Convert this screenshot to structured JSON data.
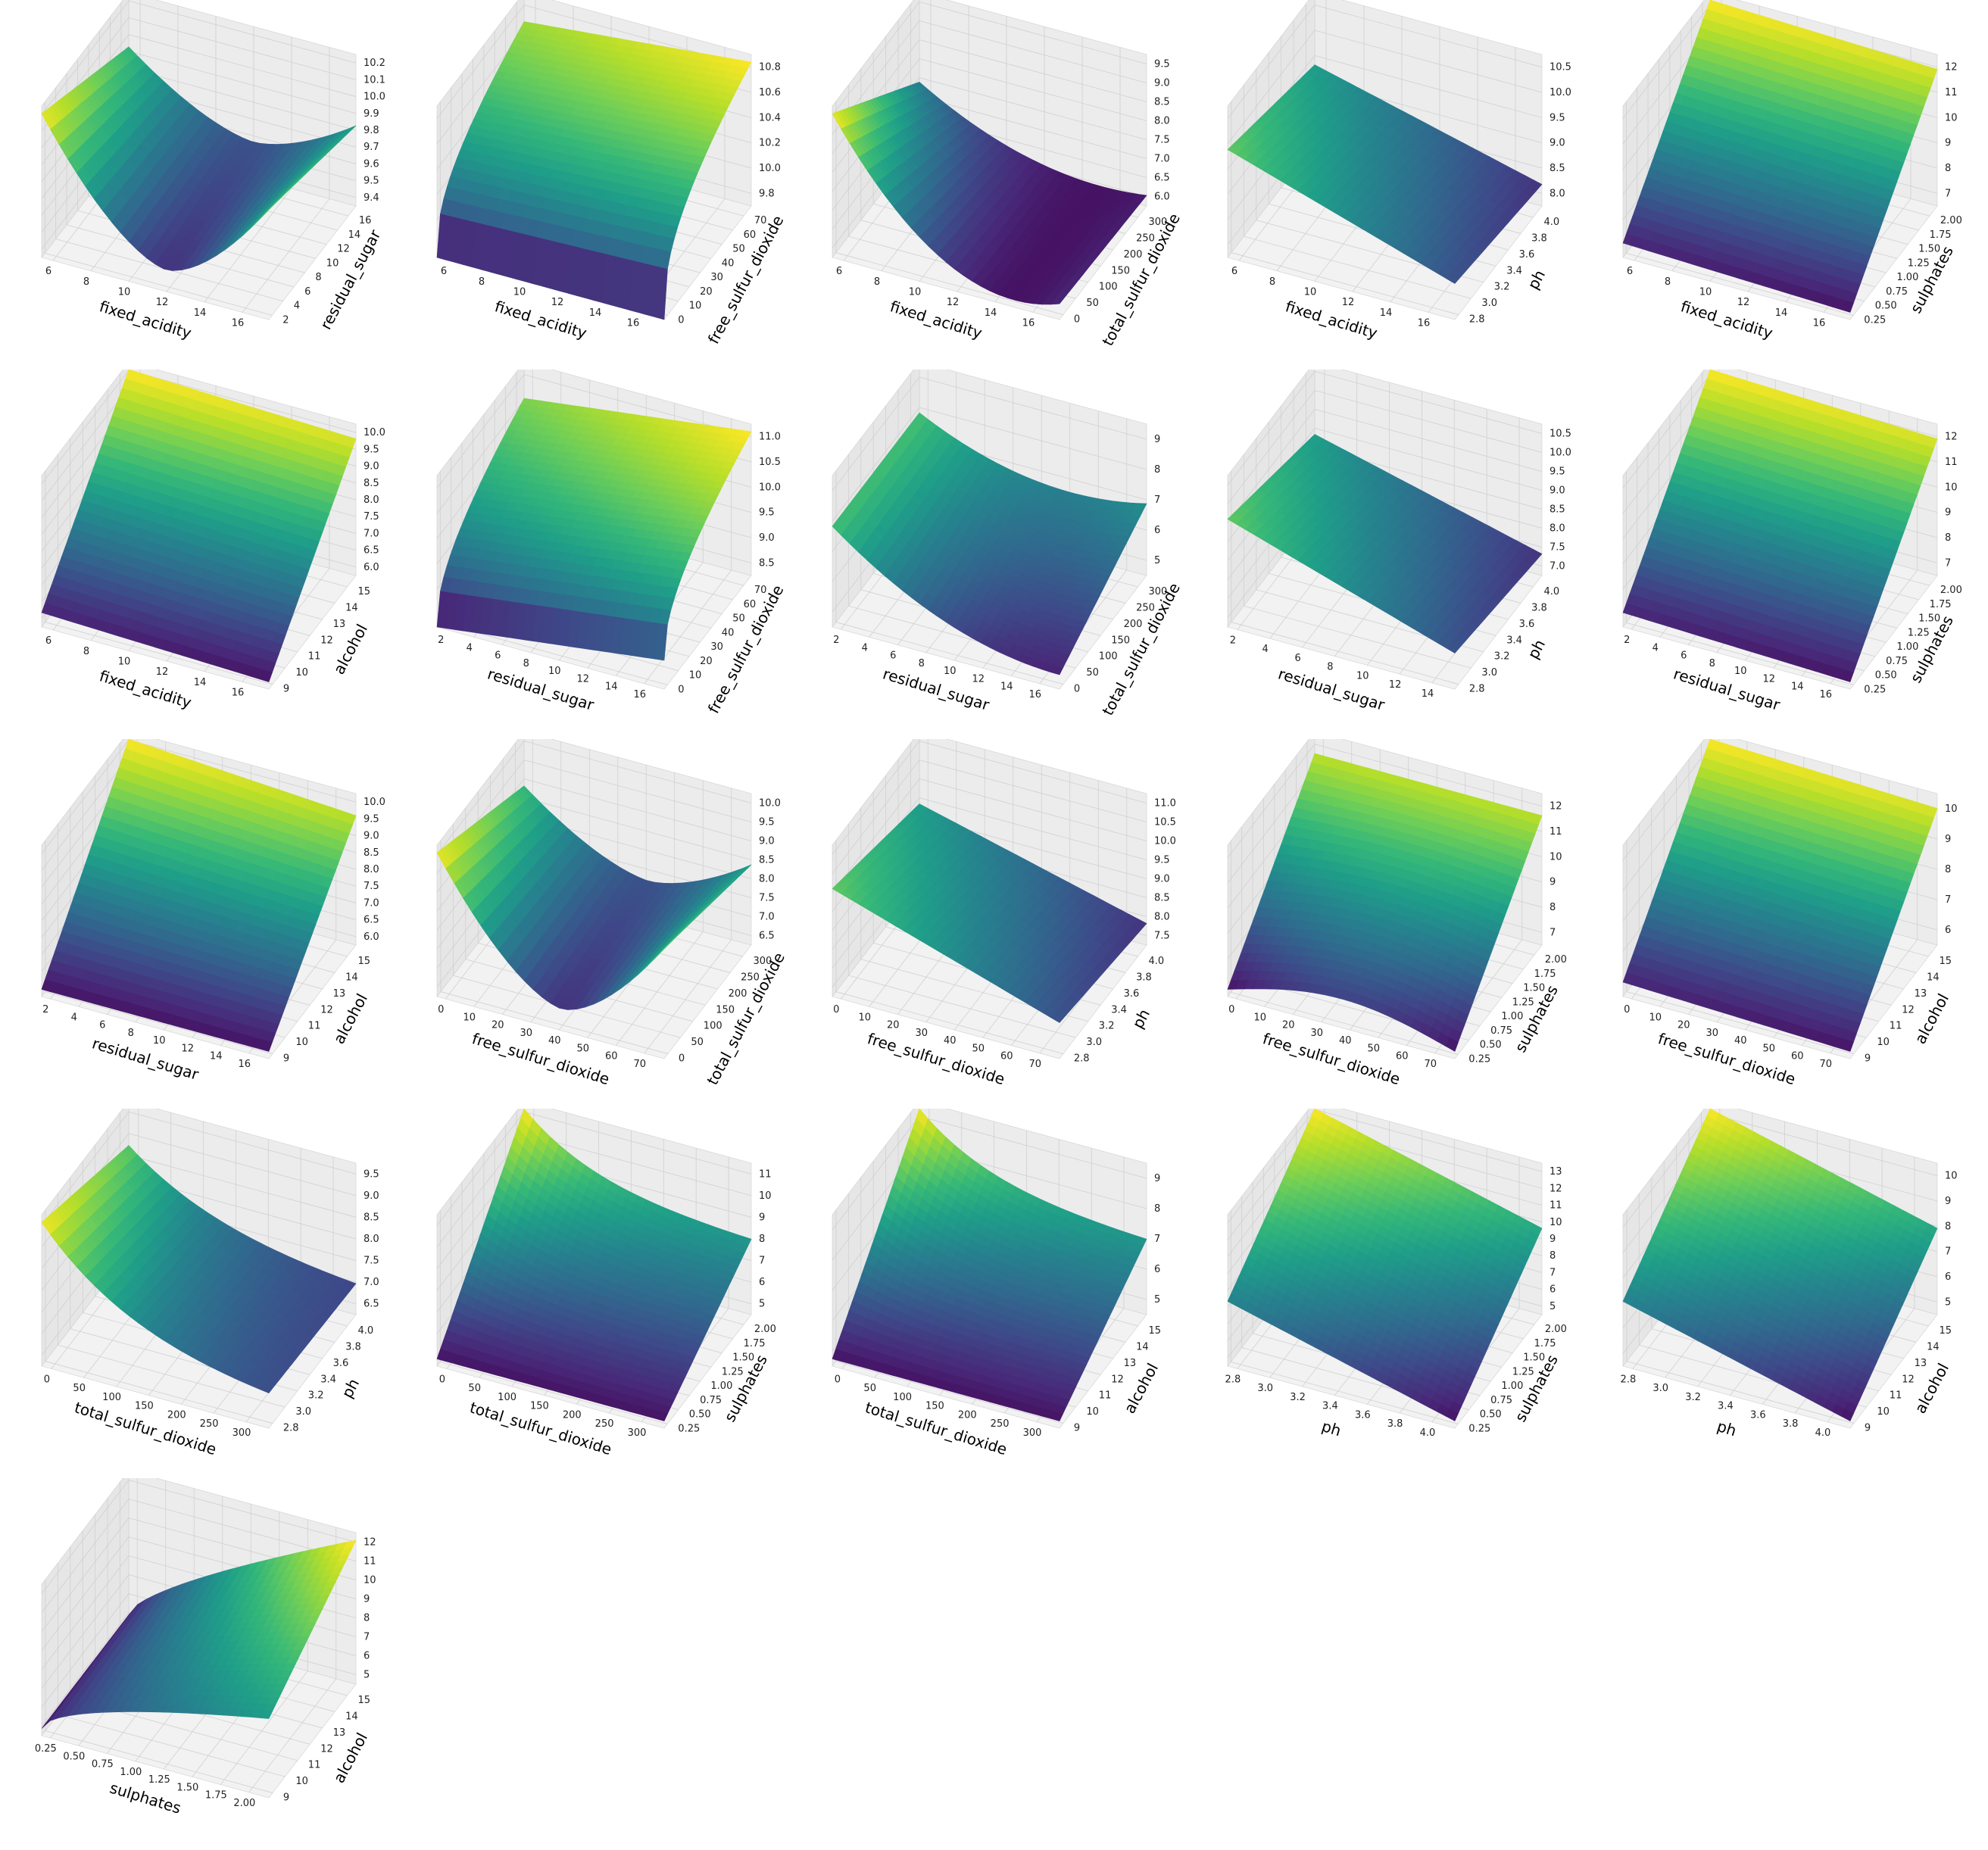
{
  "figure": {
    "colormap": "viridis",
    "colormap_stops": [
      "#440154",
      "#482878",
      "#3e4989",
      "#31688e",
      "#26828e",
      "#1f9e89",
      "#35b779",
      "#6ece58",
      "#b5de2b",
      "#fde725"
    ],
    "pane_color": "#f2f2f2",
    "grid_color": "#d0d0d0"
  },
  "chart_data": [
    {
      "type": "surface",
      "xlabel": "fixed_acidity",
      "ylabel": "residual_sugar",
      "zlabel": ".",
      "xticks": [
        "6",
        "8",
        "10",
        "12",
        "14",
        "16"
      ],
      "yticks": [
        "2",
        "4",
        "6",
        "8",
        "10",
        "12",
        "14",
        "16"
      ],
      "zticks": [
        "9.4",
        "9.5",
        "9.6",
        "9.7",
        "9.8",
        "9.9",
        "10.0",
        "10.1",
        "10.2"
      ],
      "xlim": [
        4.6,
        15.9
      ],
      "ylim": [
        0.9,
        15.5
      ],
      "zlim": [
        9.4,
        10.2
      ],
      "surface": "valley_x"
    },
    {
      "type": "surface",
      "xlabel": "fixed_acidity",
      "ylabel": "free_sulfur_dioxide",
      "zlabel": ".",
      "xticks": [
        "6",
        "8",
        "10",
        "12",
        "14",
        "16"
      ],
      "yticks": [
        "0",
        "10",
        "20",
        "30",
        "40",
        "50",
        "60",
        "70"
      ],
      "zticks": [
        "9.8",
        "10.0",
        "10.2",
        "10.4",
        "10.6",
        "10.8"
      ],
      "xlim": [
        4.6,
        15.9
      ],
      "ylim": [
        1,
        72
      ],
      "zlim": [
        9.7,
        10.85
      ],
      "surface": "sqrt_y"
    },
    {
      "type": "surface",
      "xlabel": "fixed_acidity",
      "ylabel": "total_sulfur_dioxide",
      "zlabel": ".",
      "xticks": [
        "6",
        "8",
        "10",
        "12",
        "14",
        "16"
      ],
      "yticks": [
        "0",
        "50",
        "100",
        "150",
        "200",
        "250",
        "300"
      ],
      "zticks": [
        "6.0",
        "6.5",
        "7.0",
        "7.5",
        "8.0",
        "8.5",
        "9.0",
        "9.5"
      ],
      "xlim": [
        4.6,
        15.9
      ],
      "ylim": [
        6,
        289
      ],
      "zlim": [
        6.0,
        9.6
      ],
      "surface": "valley_x_steep"
    },
    {
      "type": "surface",
      "xlabel": "fixed_acidity",
      "ylabel": "ph",
      "zlabel": ".",
      "xticks": [
        "6",
        "8",
        "10",
        "12",
        "14",
        "16"
      ],
      "yticks": [
        "2.8",
        "3.0",
        "3.2",
        "3.4",
        "3.6",
        "3.8",
        "4.0"
      ],
      "zticks": [
        "8.0",
        "8.5",
        "9.0",
        "9.5",
        "10.0",
        "10.5"
      ],
      "xlim": [
        4.6,
        15.9
      ],
      "ylim": [
        2.74,
        4.01
      ],
      "zlim": [
        8.0,
        10.6
      ],
      "surface": "flat_tilt"
    },
    {
      "type": "surface",
      "xlabel": "fixed_acidity",
      "ylabel": "sulphates",
      "zlabel": ".",
      "xticks": [
        "6",
        "8",
        "10",
        "12",
        "14",
        "16"
      ],
      "yticks": [
        "0.25",
        "0.50",
        "0.75",
        "1.00",
        "1.25",
        "1.50",
        "1.75",
        "2.00"
      ],
      "zticks": [
        "7",
        "8",
        "9",
        "10",
        "11",
        "12"
      ],
      "xlim": [
        4.6,
        15.9
      ],
      "ylim": [
        0.33,
        2.0
      ],
      "zlim": [
        6.6,
        12.6
      ],
      "surface": "linear_y"
    },
    {
      "type": "surface",
      "xlabel": "fixed_acidity",
      "ylabel": "alcohol",
      "zlabel": ".",
      "xticks": [
        "6",
        "8",
        "10",
        "12",
        "14",
        "16"
      ],
      "yticks": [
        "9",
        "10",
        "11",
        "12",
        "13",
        "14",
        "15"
      ],
      "zticks": [
        "6.0",
        "6.5",
        "7.0",
        "7.5",
        "8.0",
        "8.5",
        "9.0",
        "9.5",
        "10.0"
      ],
      "xlim": [
        4.6,
        15.9
      ],
      "ylim": [
        8.4,
        14.9
      ],
      "zlim": [
        5.9,
        10.1
      ],
      "surface": "linear_y"
    },
    {
      "type": "surface",
      "xlabel": "residual_sugar",
      "ylabel": "free_sulfur_dioxide",
      "zlabel": ".",
      "xticks": [
        "2",
        "4",
        "6",
        "8",
        "10",
        "12",
        "14",
        "16"
      ],
      "yticks": [
        "0",
        "10",
        "20",
        "30",
        "40",
        "50",
        "60",
        "70"
      ],
      "zticks": [
        "8.5",
        "9.0",
        "9.5",
        "10.0",
        "10.5",
        "11.0"
      ],
      "xlim": [
        0.9,
        15.5
      ],
      "ylim": [
        1,
        72
      ],
      "zlim": [
        8.3,
        11.2
      ],
      "surface": "sqrt_y_tilt"
    },
    {
      "type": "surface",
      "xlabel": "residual_sugar",
      "ylabel": "total_sulfur_dioxide",
      "zlabel": ".",
      "xticks": [
        "2",
        "4",
        "6",
        "8",
        "10",
        "12",
        "14",
        "16"
      ],
      "yticks": [
        "0",
        "50",
        "100",
        "150",
        "200",
        "250",
        "300"
      ],
      "zticks": [
        "5",
        "6",
        "7",
        "8",
        "9"
      ],
      "xlim": [
        0.9,
        15.5
      ],
      "ylim": [
        6,
        289
      ],
      "zlim": [
        4.5,
        9.5
      ],
      "surface": "saddle"
    },
    {
      "type": "surface",
      "xlabel": "residual_sugar",
      "ylabel": "ph",
      "zlabel": ".",
      "xticks": [
        "2",
        "4",
        "6",
        "8",
        "10",
        "12",
        "14"
      ],
      "yticks": [
        "2.8",
        "3.0",
        "3.2",
        "3.4",
        "3.6",
        "3.8",
        "4.0"
      ],
      "zticks": [
        "7.0",
        "7.5",
        "8.0",
        "8.5",
        "9.0",
        "9.5",
        "10.0",
        "10.5"
      ],
      "xlim": [
        0.9,
        15.5
      ],
      "ylim": [
        2.74,
        4.01
      ],
      "zlim": [
        6.8,
        10.7
      ],
      "surface": "flat_tilt"
    },
    {
      "type": "surface",
      "xlabel": "residual_sugar",
      "ylabel": "sulphates",
      "zlabel": ".",
      "xticks": [
        "2",
        "4",
        "6",
        "8",
        "10",
        "12",
        "14",
        "16"
      ],
      "yticks": [
        "0.25",
        "0.50",
        "0.75",
        "1.00",
        "1.25",
        "1.50",
        "1.75",
        "2.00"
      ],
      "zticks": [
        "7",
        "8",
        "9",
        "10",
        "11",
        "12"
      ],
      "xlim": [
        0.9,
        15.5
      ],
      "ylim": [
        0.33,
        2.0
      ],
      "zlim": [
        6.3,
        12.4
      ],
      "surface": "linear_y"
    },
    {
      "type": "surface",
      "xlabel": "residual_sugar",
      "ylabel": "alcohol",
      "zlabel": ".",
      "xticks": [
        "2",
        "4",
        "6",
        "8",
        "10",
        "12",
        "14",
        "16"
      ],
      "yticks": [
        "9",
        "10",
        "11",
        "12",
        "13",
        "14",
        "15"
      ],
      "zticks": [
        "6.0",
        "6.5",
        "7.0",
        "7.5",
        "8.0",
        "8.5",
        "9.0",
        "9.5",
        "10.0"
      ],
      "xlim": [
        0.9,
        15.5
      ],
      "ylim": [
        8.4,
        14.9
      ],
      "zlim": [
        5.9,
        10.2
      ],
      "surface": "linear_y_peak"
    },
    {
      "type": "surface",
      "xlabel": "free_sulfur_dioxide",
      "ylabel": "total_sulfur_dioxide",
      "zlabel": ".",
      "xticks": [
        "0",
        "10",
        "20",
        "30",
        "40",
        "50",
        "60",
        "70"
      ],
      "yticks": [
        "0",
        "50",
        "100",
        "150",
        "200",
        "250",
        "300"
      ],
      "zticks": [
        "6.5",
        "7.0",
        "7.5",
        "8.0",
        "8.5",
        "9.0",
        "9.5",
        "10.0"
      ],
      "xlim": [
        1,
        72
      ],
      "ylim": [
        6,
        289
      ],
      "zlim": [
        6.4,
        10.1
      ],
      "surface": "valley_x"
    },
    {
      "type": "surface",
      "xlabel": "free_sulfur_dioxide",
      "ylabel": "ph",
      "zlabel": ".",
      "xticks": [
        "0",
        "10",
        "20",
        "30",
        "40",
        "50",
        "60",
        "70"
      ],
      "yticks": [
        "2.8",
        "3.0",
        "3.2",
        "3.4",
        "3.6",
        "3.8",
        "4.0"
      ],
      "zticks": [
        "7.5",
        "8.0",
        "8.5",
        "9.0",
        "9.5",
        "10.0",
        "10.5",
        "11.0"
      ],
      "xlim": [
        1,
        72
      ],
      "ylim": [
        2.74,
        4.01
      ],
      "zlim": [
        7.4,
        11.1
      ],
      "surface": "flat_tilt"
    },
    {
      "type": "surface",
      "xlabel": "free_sulfur_dioxide",
      "ylabel": "sulphates",
      "zlabel": ".",
      "xticks": [
        "0",
        "10",
        "20",
        "30",
        "40",
        "50",
        "60",
        "70"
      ],
      "yticks": [
        "0.25",
        "0.50",
        "0.75",
        "1.00",
        "1.25",
        "1.50",
        "1.75",
        "2.00"
      ],
      "zticks": [
        "7",
        "8",
        "9",
        "10",
        "11",
        "12"
      ],
      "xlim": [
        1,
        72
      ],
      "ylim": [
        0.33,
        2.0
      ],
      "zlim": [
        6.0,
        12.5
      ],
      "surface": "linear_y_bow"
    },
    {
      "type": "surface",
      "xlabel": "free_sulfur_dioxide",
      "ylabel": "alcohol",
      "zlabel": ".",
      "xticks": [
        "0",
        "10",
        "20",
        "30",
        "40",
        "50",
        "60",
        "70"
      ],
      "yticks": [
        "9",
        "10",
        "11",
        "12",
        "13",
        "14",
        "15"
      ],
      "zticks": [
        "6",
        "7",
        "8",
        "9",
        "10"
      ],
      "xlim": [
        1,
        72
      ],
      "ylim": [
        8.4,
        14.9
      ],
      "zlim": [
        5.5,
        10.6
      ],
      "surface": "linear_y"
    },
    {
      "type": "surface",
      "xlabel": "total_sulfur_dioxide",
      "ylabel": "ph",
      "zlabel": ".",
      "xticks": [
        "0",
        "50",
        "100",
        "150",
        "200",
        "250",
        "300"
      ],
      "yticks": [
        "2.8",
        "3.0",
        "3.2",
        "3.4",
        "3.6",
        "3.8",
        "4.0"
      ],
      "zticks": [
        "6.5",
        "7.0",
        "7.5",
        "8.0",
        "8.5",
        "9.0",
        "9.5"
      ],
      "xlim": [
        6,
        289
      ],
      "ylim": [
        2.74,
        4.01
      ],
      "zlim": [
        6.3,
        9.9
      ],
      "surface": "decay_x"
    },
    {
      "type": "surface",
      "xlabel": "total_sulfur_dioxide",
      "ylabel": "sulphates",
      "zlabel": ".",
      "xticks": [
        "0",
        "50",
        "100",
        "150",
        "200",
        "250",
        "300"
      ],
      "yticks": [
        "0.25",
        "0.50",
        "0.75",
        "1.00",
        "1.25",
        "1.50",
        "1.75",
        "2.00"
      ],
      "zticks": [
        "5",
        "6",
        "7",
        "8",
        "9",
        "10",
        "11"
      ],
      "xlim": [
        6,
        289
      ],
      "ylim": [
        0.33,
        2.0
      ],
      "zlim": [
        4.6,
        11.6
      ],
      "surface": "corner_peak"
    },
    {
      "type": "surface",
      "xlabel": "total_sulfur_dioxide",
      "ylabel": "alcohol",
      "zlabel": ".",
      "xticks": [
        "0",
        "50",
        "100",
        "150",
        "200",
        "250",
        "300"
      ],
      "yticks": [
        "9",
        "10",
        "11",
        "12",
        "13",
        "14",
        "15"
      ],
      "zticks": [
        "5",
        "6",
        "7",
        "8",
        "9"
      ],
      "xlim": [
        6,
        289
      ],
      "ylim": [
        8.4,
        14.9
      ],
      "zlim": [
        4.6,
        9.7
      ],
      "surface": "corner_peak"
    },
    {
      "type": "surface",
      "xlabel": "ph",
      "ylabel": "sulphates",
      "zlabel": ".",
      "xticks": [
        "2.8",
        "3.0",
        "3.2",
        "3.4",
        "3.6",
        "3.8",
        "4.0"
      ],
      "yticks": [
        "0.25",
        "0.50",
        "0.75",
        "1.00",
        "1.25",
        "1.50",
        "1.75",
        "2.00"
      ],
      "zticks": [
        "5",
        "6",
        "7",
        "8",
        "9",
        "10",
        "11",
        "12",
        "13"
      ],
      "xlim": [
        2.74,
        4.01
      ],
      "ylim": [
        0.33,
        2.0
      ],
      "zlim": [
        4.2,
        13.2
      ],
      "surface": "plane_xy"
    },
    {
      "type": "surface",
      "xlabel": "ph",
      "ylabel": "alcohol",
      "zlabel": ".",
      "xticks": [
        "2.8",
        "3.0",
        "3.2",
        "3.4",
        "3.6",
        "3.8",
        "4.0"
      ],
      "yticks": [
        "9",
        "10",
        "11",
        "12",
        "13",
        "14",
        "15"
      ],
      "zticks": [
        "5",
        "6",
        "7",
        "8",
        "9",
        "10"
      ],
      "xlim": [
        2.74,
        4.01
      ],
      "ylim": [
        8.4,
        14.9
      ],
      "zlim": [
        4.3,
        10.6
      ],
      "surface": "plane_xy"
    },
    {
      "type": "surface",
      "xlabel": "sulphates",
      "ylabel": "alcohol",
      "zlabel": ".",
      "xticks": [
        "0.25",
        "0.50",
        "0.75",
        "1.00",
        "1.25",
        "1.50",
        "1.75",
        "2.00"
      ],
      "yticks": [
        "9",
        "10",
        "11",
        "12",
        "13",
        "14",
        "15"
      ],
      "zticks": [
        "5",
        "6",
        "7",
        "8",
        "9",
        "10",
        "11",
        "12"
      ],
      "xlim": [
        0.33,
        2.0
      ],
      "ylim": [
        8.4,
        14.9
      ],
      "zlim": [
        4.3,
        12.7
      ],
      "surface": "sqrt_x_y"
    }
  ]
}
